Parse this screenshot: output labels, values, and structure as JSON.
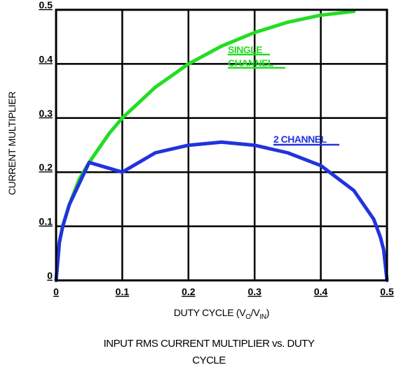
{
  "chart_data": {
    "type": "line",
    "title": "INPUT RMS CURRENT MULTIPLIER vs. DUTY CYCLE",
    "title_lines": [
      "INPUT RMS CURRENT MULTIPLIER vs. DUTY",
      "CYCLE"
    ],
    "xlabel_main": "DUTY CYCLE (V",
    "xlabel_sub1": "O",
    "xlabel_mid": "/V",
    "xlabel_sub2": "IN",
    "xlabel_end": ")",
    "ylabel": "CURRENT MULTIPLIER",
    "xlim": [
      0,
      0.5
    ],
    "ylim": [
      0,
      0.5
    ],
    "x_ticks": [
      {
        "value": 0,
        "label": "0"
      },
      {
        "value": 0.1,
        "label": "0.1"
      },
      {
        "value": 0.2,
        "label": "0.2"
      },
      {
        "value": 0.3,
        "label": "0.3"
      },
      {
        "value": 0.4,
        "label": "0.4"
      },
      {
        "value": 0.5,
        "label": "0.5"
      }
    ],
    "y_ticks": [
      {
        "value": 0,
        "label": "0"
      },
      {
        "value": 0.1,
        "label": "0.1"
      },
      {
        "value": 0.2,
        "label": "0.2"
      },
      {
        "value": 0.3,
        "label": "0.3"
      },
      {
        "value": 0.4,
        "label": "0.4"
      },
      {
        "value": 0.5,
        "label": "0.5"
      }
    ],
    "grid": true,
    "series": [
      {
        "label_lines": [
          "SINGLE",
          "CHANNEL"
        ],
        "color": "#22dd22",
        "x": [
          0.0,
          0.005,
          0.01,
          0.02,
          0.035,
          0.05,
          0.08,
          0.1,
          0.15,
          0.2,
          0.25,
          0.3,
          0.35,
          0.4,
          0.45
        ],
        "y": [
          0.0,
          0.07,
          0.1,
          0.14,
          0.187,
          0.218,
          0.271,
          0.3,
          0.357,
          0.4,
          0.433,
          0.458,
          0.477,
          0.49,
          0.497
        ]
      },
      {
        "label_lines": [
          "2 CHANNEL"
        ],
        "color": "#2233dd",
        "x": [
          0.0,
          0.005,
          0.01,
          0.02,
          0.05,
          0.1,
          0.15,
          0.2,
          0.25,
          0.3,
          0.35,
          0.4,
          0.45,
          0.48,
          0.49,
          0.495,
          0.5
        ],
        "y": [
          0.0,
          0.0705,
          0.0995,
          0.14,
          0.218,
          0.2,
          0.2358,
          0.2498,
          0.2555,
          0.2498,
          0.2358,
          0.2121,
          0.166,
          0.113,
          0.0799,
          0.0566,
          0.0
        ]
      }
    ]
  }
}
